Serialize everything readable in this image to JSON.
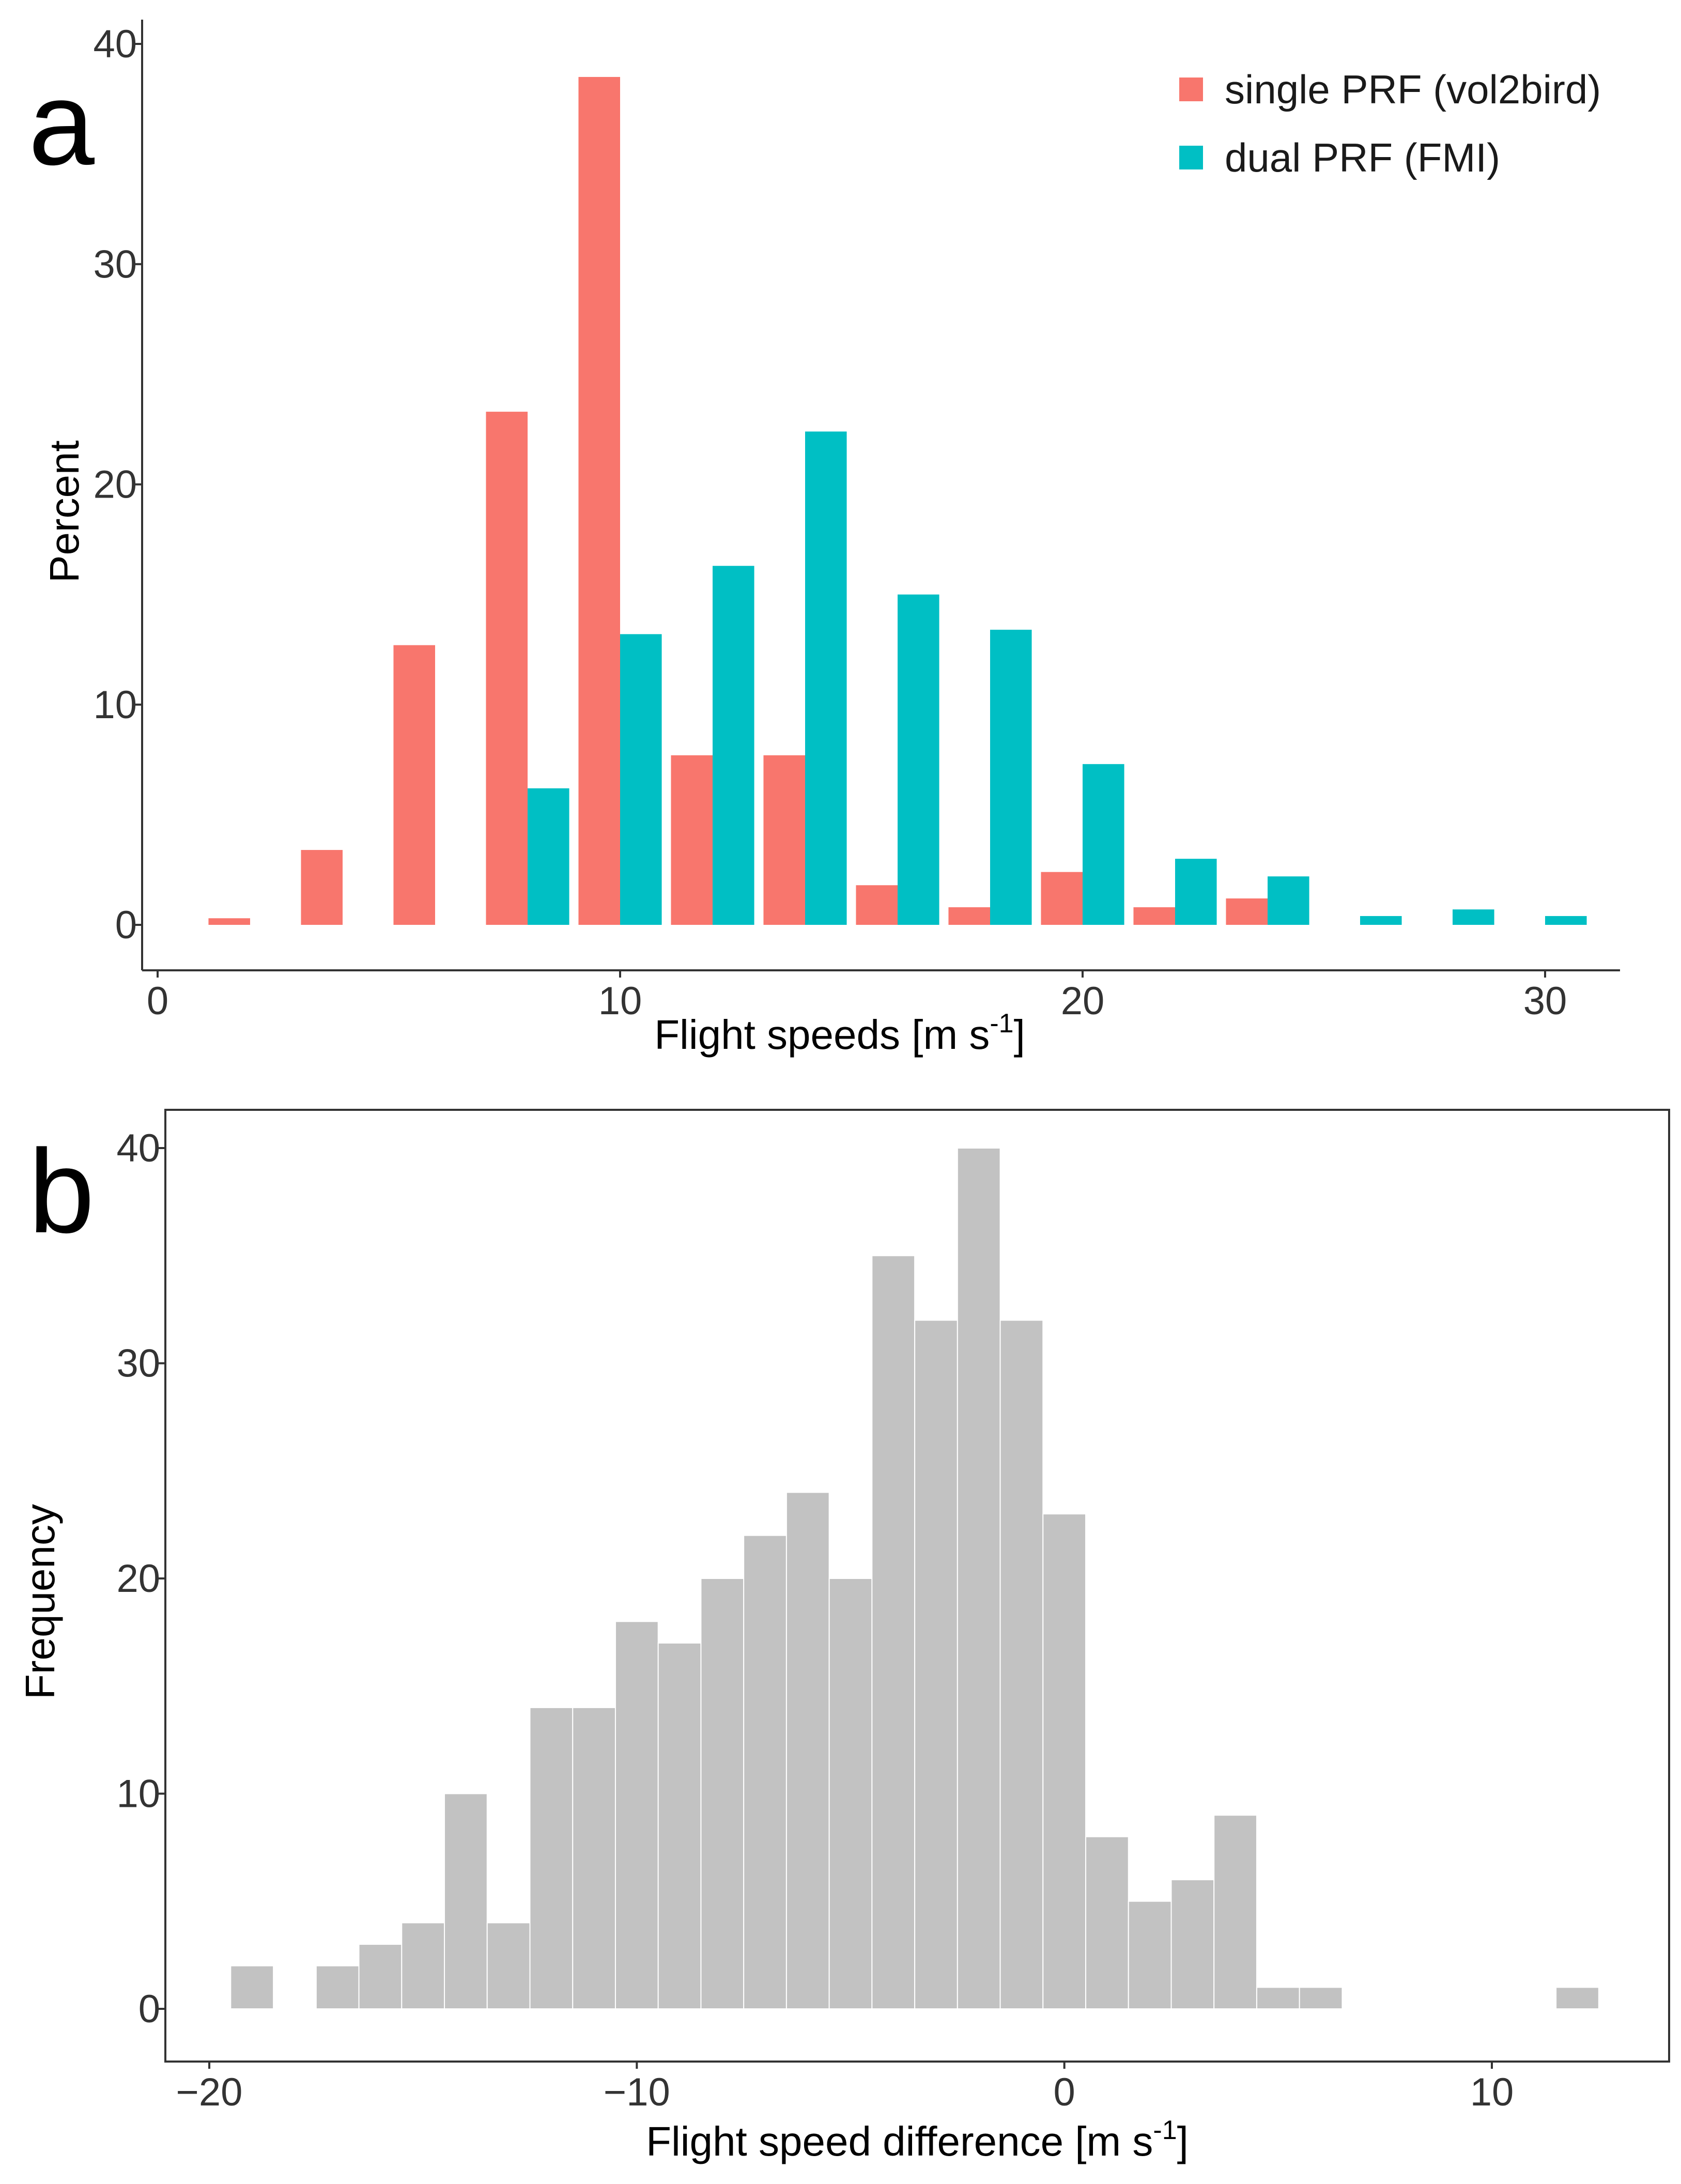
{
  "panel_a": {
    "letter": "a"
  },
  "panel_b": {
    "letter": "b"
  },
  "colors": {
    "single": "#F8766D",
    "dual": "#00BFC4",
    "hist": "#C2C2C2"
  },
  "chart_data": [
    {
      "type": "bar",
      "title": "",
      "xlabel": "Flight speeds [m s",
      "xlabel_sup": "-1",
      "xlabel_close": "]",
      "ylabel": "Percent",
      "xlim": [
        0,
        31.5
      ],
      "ylim": [
        0,
        41
      ],
      "xticks": [
        0,
        10,
        20,
        30
      ],
      "xtick_labels": [
        "0",
        "10",
        "20",
        "30"
      ],
      "yticks": [
        0,
        10,
        20,
        30,
        40
      ],
      "ytick_labels": [
        "0",
        "10",
        "20",
        "30",
        "40"
      ],
      "bin_width": 2,
      "x": [
        2,
        4,
        6,
        8,
        10,
        12,
        14,
        16,
        18,
        20,
        22,
        24,
        26,
        28,
        30
      ],
      "legend": {
        "position": "top-right"
      },
      "series": [
        {
          "name": "single PRF (vol2bird)",
          "values": [
            0.3,
            3.4,
            12.7,
            23.3,
            38.5,
            7.7,
            7.7,
            1.8,
            0.8,
            2.4,
            0.8,
            1.2,
            0,
            0,
            0
          ]
        },
        {
          "name": "dual PRF (FMI)",
          "values": [
            0,
            0,
            0,
            6.2,
            13.2,
            16.3,
            22.4,
            15.0,
            13.4,
            7.3,
            3.0,
            2.2,
            0.4,
            0.7,
            0.4
          ]
        }
      ]
    },
    {
      "type": "bar",
      "title": "",
      "xlabel": "Flight speed difference [m s",
      "xlabel_sup": "-1",
      "xlabel_close": "]",
      "ylabel": "Frequency",
      "xlim": [
        -20.2,
        13.8
      ],
      "ylim": [
        0,
        42
      ],
      "xticks": [
        -20,
        -10,
        0,
        10
      ],
      "xtick_labels": [
        "−20",
        "−10",
        "0",
        "10"
      ],
      "yticks": [
        0,
        10,
        20,
        30,
        40
      ],
      "ytick_labels": [
        "0",
        "10",
        "20",
        "30",
        "40"
      ],
      "bin_start": -19.5,
      "bin_width": 1,
      "values": [
        2,
        0,
        2,
        3,
        4,
        10,
        4,
        14,
        14,
        18,
        17,
        20,
        22,
        24,
        20,
        35,
        32,
        40,
        32,
        23,
        8,
        5,
        6,
        9,
        1,
        1,
        0,
        0,
        0,
        0,
        0,
        1
      ]
    }
  ]
}
